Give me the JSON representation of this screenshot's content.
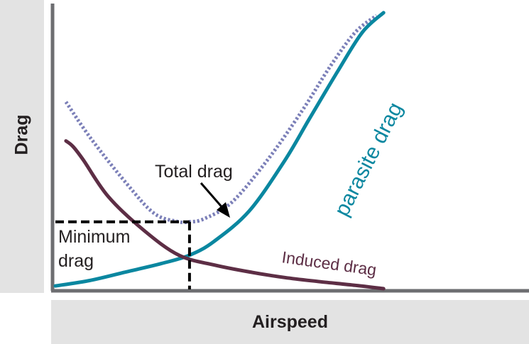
{
  "chart_data": {
    "type": "line",
    "xlabel": "Airspeed",
    "ylabel": "Drag",
    "xlim": [
      0,
      100
    ],
    "ylim": [
      0,
      100
    ],
    "grid": false,
    "legend": "none",
    "series": [
      {
        "name": "Total drag",
        "style": "dotted",
        "color": "#7b7fb8",
        "x": [
          3,
          10,
          20,
          28,
          35,
          38,
          42,
          50,
          60,
          70,
          78,
          85,
          91
        ],
        "y": [
          67,
          54,
          38,
          27,
          24,
          24,
          25,
          31,
          46,
          64,
          80,
          92,
          98
        ]
      },
      {
        "name": "parasite drag",
        "style": "solid",
        "color": "#0a87a0",
        "x": [
          0,
          10,
          20,
          30,
          38,
          45,
          55,
          65,
          72,
          80,
          87,
          93
        ],
        "y": [
          1,
          3,
          6,
          9,
          12,
          17,
          28,
          46,
          61,
          78,
          92,
          99
        ]
      },
      {
        "name": "Induced drag",
        "style": "solid",
        "color": "#5d2e45",
        "x": [
          3,
          5,
          8,
          15,
          25,
          35,
          45,
          55,
          65,
          75,
          85,
          93
        ],
        "y": [
          53,
          51,
          46,
          33,
          21,
          12,
          8.5,
          6,
          4,
          2.5,
          1.2,
          0
        ]
      }
    ],
    "annotations": [
      {
        "text": "Total drag",
        "x": 38,
        "y": 24
      },
      {
        "text": "Minimum drag",
        "x": 38,
        "y": 24
      }
    ],
    "min_drag_point": {
      "x": 38,
      "y": 24
    }
  }
}
